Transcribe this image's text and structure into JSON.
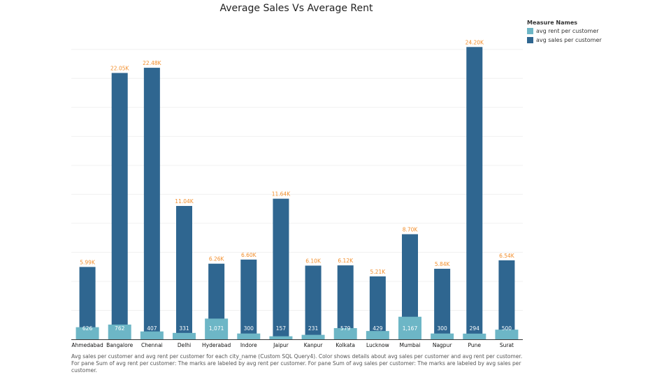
{
  "chart_data": {
    "type": "bar",
    "title": "Average Sales Vs Average Rent",
    "categories": [
      "Ahmedabad",
      "Bangalore",
      "Chennai",
      "Delhi",
      "Hyderabad",
      "Indore",
      "Jaipur",
      "Kanpur",
      "Kolkata",
      "Lucknow",
      "Mumbai",
      "Nagpur",
      "Pune",
      "Surat"
    ],
    "series": [
      {
        "name": "avg rent per customer",
        "color": "#6db6c6",
        "values": [
          626,
          762,
          407,
          331,
          1071,
          300,
          157,
          231,
          579,
          429,
          1167,
          300,
          294,
          500
        ],
        "labels": [
          "626",
          "762",
          "407",
          "331",
          "1,071",
          "300",
          "157",
          "231",
          "579",
          "429",
          "1,167",
          "300",
          "294",
          "500"
        ]
      },
      {
        "name": "avg sales per customer",
        "color": "#2f6690",
        "values": [
          5990,
          22050,
          22480,
          11040,
          6260,
          6600,
          11640,
          6100,
          6120,
          5210,
          8700,
          5840,
          24200,
          6540
        ],
        "labels": [
          "5.99K",
          "22.05K",
          "22.48K",
          "11.04K",
          "6.26K",
          "6.60K",
          "11.64K",
          "6.10K",
          "6.12K",
          "5.21K",
          "8.70K",
          "5.84K",
          "24.20K",
          "6.54K"
        ]
      }
    ],
    "ylim": [
      0,
      25200
    ],
    "grid": true,
    "legend_title": "Measure Names",
    "legend_position": "top-right",
    "label_color": "#f28e2b"
  },
  "caption": "Avg sales per customer and avg rent per customer for each city_name (Custom SQL Query4).  Color shows details about avg sales per customer and avg rent per customer. For pane Sum of avg rent per customer:  The marks are labeled by avg rent per customer.  For pane Sum of avg sales per customer:  The marks are labeled by avg sales per customer."
}
